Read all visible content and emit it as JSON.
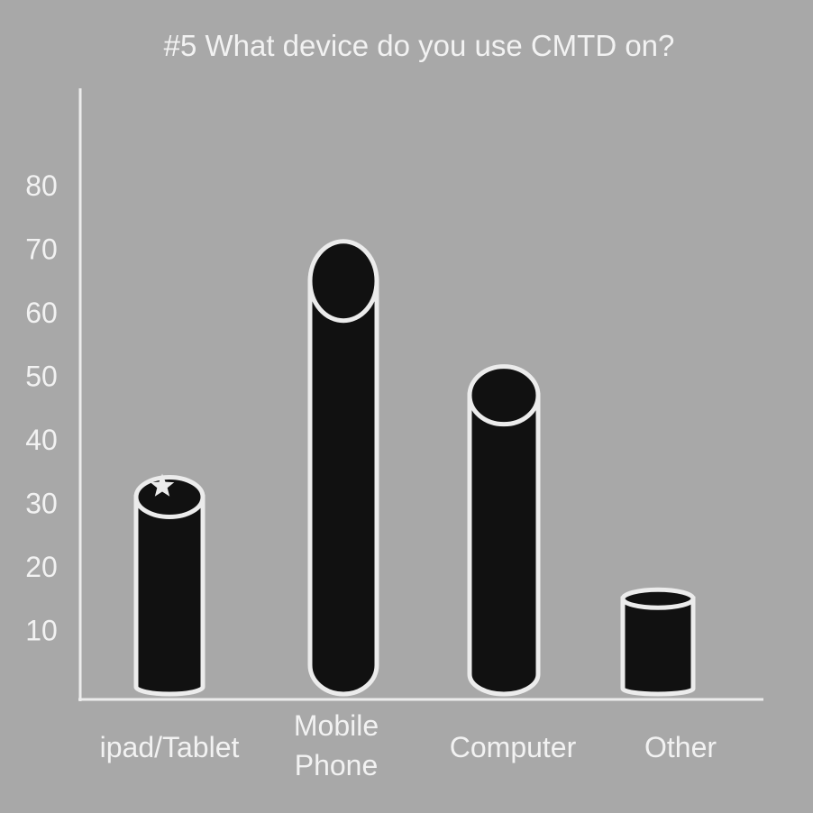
{
  "chart_data": {
    "type": "bar",
    "title": "#5 What device do you use CMTD on?",
    "xlabel": "",
    "ylabel": "",
    "categories": [
      [
        "ipad/Tablet"
      ],
      [
        "Mobile",
        "Phone"
      ],
      [
        "Computer"
      ],
      [
        "Other"
      ]
    ],
    "values": [
      31,
      65,
      47,
      15
    ],
    "yticks": [
      10,
      20,
      30,
      40,
      50,
      60,
      70,
      80
    ],
    "ylim": [
      0,
      96
    ],
    "bar_style": "cylinder",
    "grid": false,
    "colors": {
      "background": "#a8a8a8",
      "bar_fill": "#111111",
      "bar_outline": "#ececec",
      "text": "#f2f2f2"
    },
    "annotations": [
      {
        "category_index": 0,
        "marker": "star-icon"
      }
    ]
  }
}
